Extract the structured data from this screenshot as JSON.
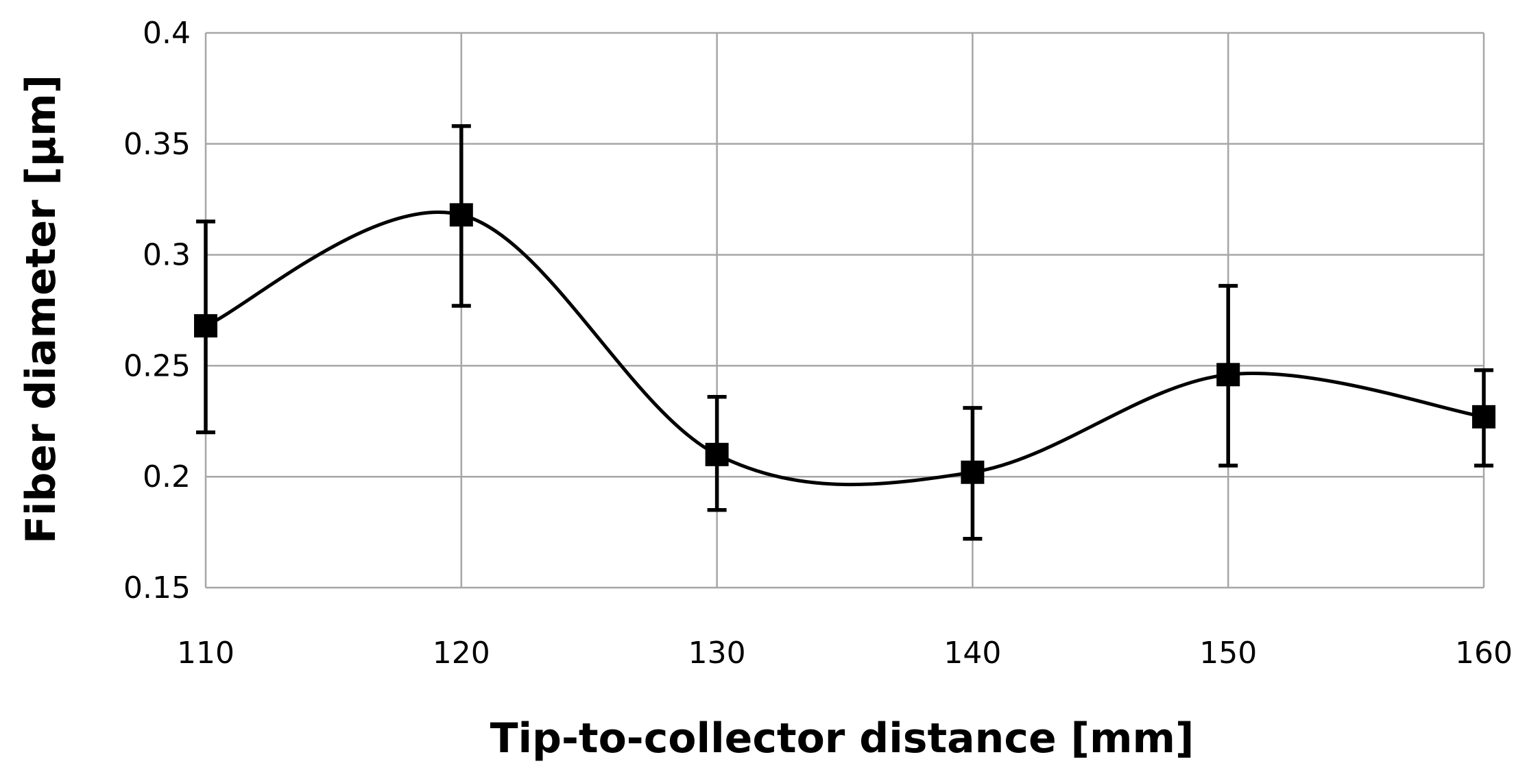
{
  "chart_data": {
    "type": "line",
    "xlabel": "Tip-to-collector distance [mm]",
    "ylabel": "Fiber diameter [µm]",
    "xlim": [
      110,
      160
    ],
    "ylim": [
      0.15,
      0.4
    ],
    "x_ticks": [
      "110",
      "120",
      "130",
      "140",
      "150",
      "160"
    ],
    "y_ticks": [
      "0.15",
      "0.2",
      "0.25",
      "0.3",
      "0.35",
      "0.4"
    ],
    "grid": true,
    "smoothed": true,
    "marker": "square",
    "series": [
      {
        "x": [
          110,
          120,
          130,
          140,
          150,
          160
        ],
        "y": [
          0.268,
          0.318,
          0.21,
          0.202,
          0.246,
          0.227
        ],
        "error_low": [
          0.22,
          0.277,
          0.185,
          0.172,
          0.205,
          0.205
        ],
        "error_high": [
          0.315,
          0.358,
          0.236,
          0.231,
          0.286,
          0.248
        ],
        "color": "#000000"
      }
    ]
  }
}
